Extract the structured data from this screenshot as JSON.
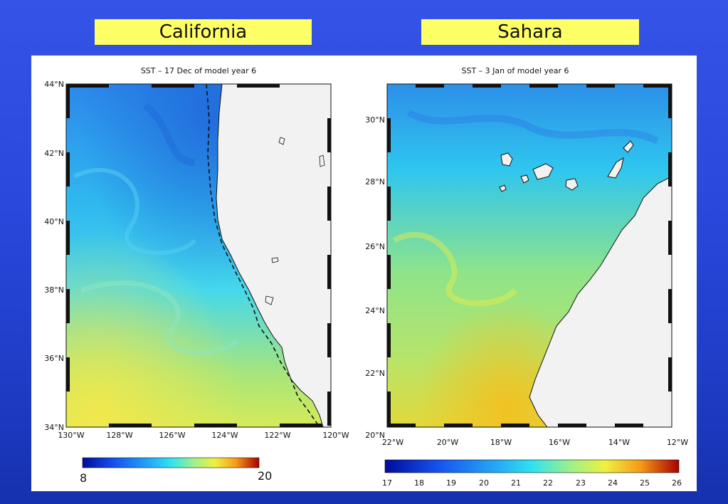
{
  "slide": {
    "background": "#2a49dc",
    "left_title": "California",
    "right_title": "Sahara"
  },
  "left_map": {
    "title": "SST – 17 Dec of model year 6",
    "lat_labels": [
      "44°N",
      "42°N",
      "40°N",
      "38°N",
      "36°N",
      "34°N"
    ],
    "lon_labels": [
      "130°W",
      "128°W",
      "126°W",
      "124°W",
      "122°W",
      "120°W"
    ],
    "colorbar_min": "8",
    "colorbar_max": "20"
  },
  "right_map": {
    "title": "SST – 3 Jan of model year 6",
    "lat_labels": [
      "30°N",
      "28°N",
      "26°N",
      "24°N",
      "22°N",
      "20°N"
    ],
    "lon_labels": [
      "22°W",
      "20°W",
      "18°W",
      "16°W",
      "14°W",
      "12°W"
    ],
    "colorbar_ticks": [
      "17",
      "18",
      "19",
      "20",
      "21",
      "22",
      "23",
      "24",
      "25",
      "26"
    ]
  },
  "colors": {
    "title_box": "#ffff66",
    "land": "#f2f2f2",
    "cold": "#1e6fe0",
    "mid": "#2ad2f2",
    "warm": "#e8f050"
  }
}
